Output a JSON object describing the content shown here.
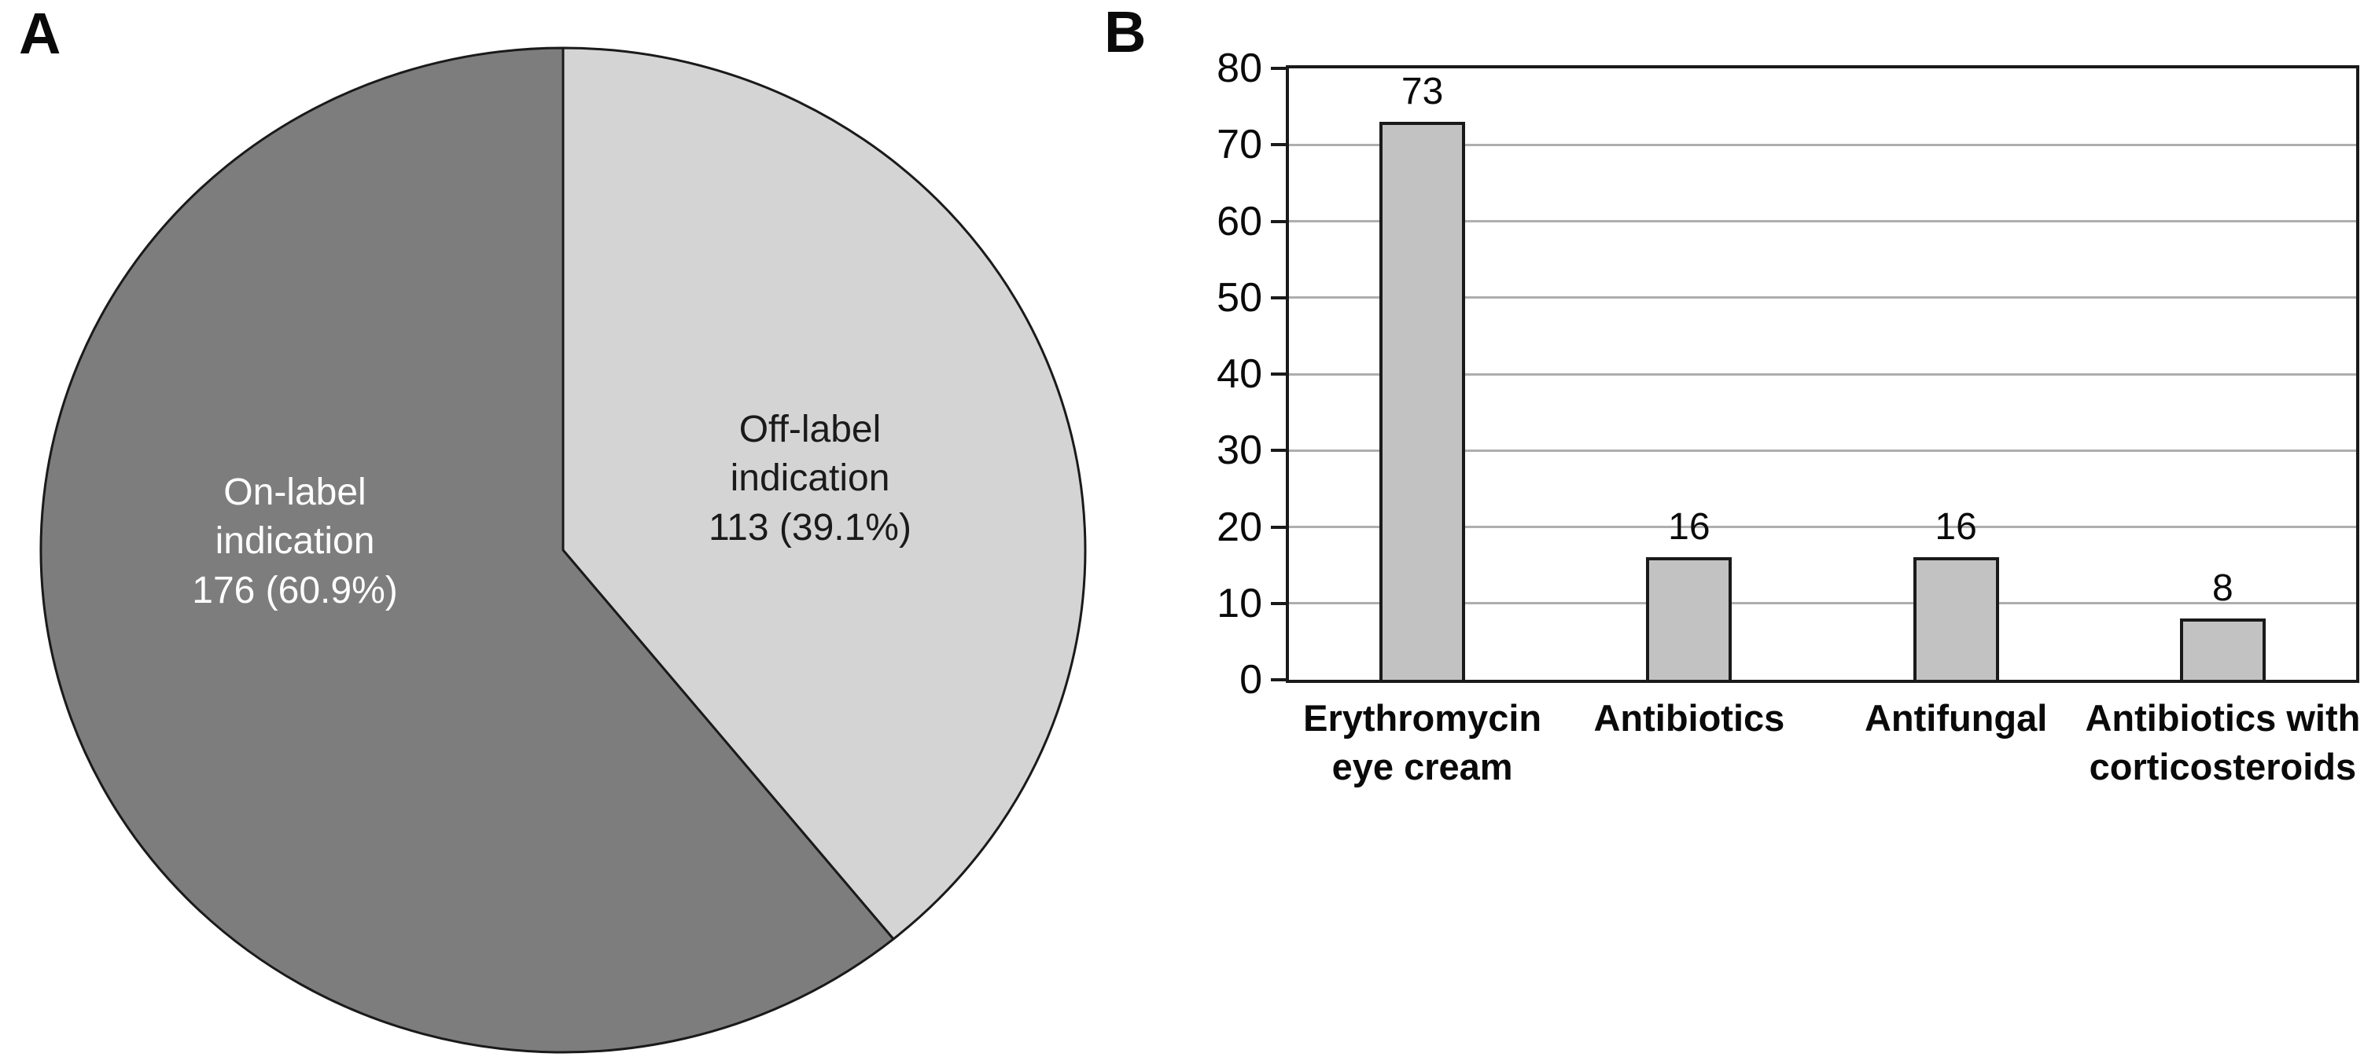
{
  "figure": {
    "panel_a_label": "A",
    "panel_b_label": "B"
  },
  "chart_data": [
    {
      "type": "pie",
      "panel": "A",
      "direction": "clockwise",
      "start_angle_deg": 0,
      "outline_color": "#1a1a1a",
      "slices": [
        {
          "label": "Off-label indication",
          "count": 113,
          "pct": 39.1,
          "display": "Off-label\nindication\n113 (39.1%)",
          "color": "#d4d4d4",
          "text_color": "#1a1a1a"
        },
        {
          "label": "On-label indication",
          "count": 176,
          "pct": 60.9,
          "display": "On-label\nindication\n176 (60.9%)",
          "color": "#7d7d7d",
          "text_color": "#ffffff"
        }
      ]
    },
    {
      "type": "bar",
      "panel": "B",
      "categories": [
        "Erythromycin\neye cream",
        "Antibiotics",
        "Antifungal",
        "Antibiotics with\ncorticosteroids"
      ],
      "values": [
        73,
        16,
        16,
        8
      ],
      "value_labels": [
        "73",
        "16",
        "16",
        "8"
      ],
      "ylim": [
        0,
        80
      ],
      "ytick_step": 10,
      "ytick_labels": [
        "0",
        "10",
        "20",
        "30",
        "40",
        "50",
        "60",
        "70",
        "80"
      ],
      "grid": true,
      "gridline_color": "#aeaeae",
      "bar_fill": "#c2c2c2",
      "bar_border": "#1a1a1a",
      "frame_color": "#1a1a1a"
    }
  ]
}
